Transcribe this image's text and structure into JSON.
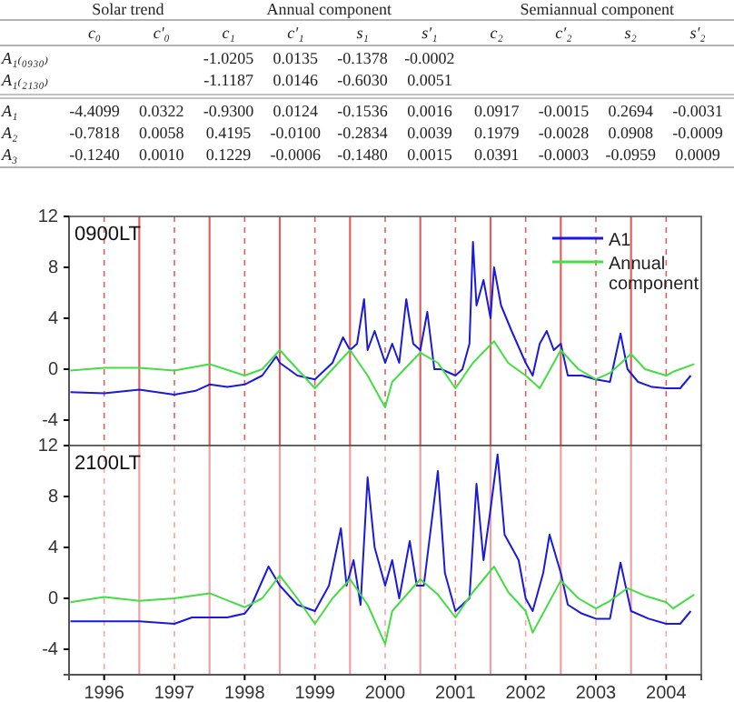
{
  "chart_data": [
    {
      "type": "other",
      "categories": [
        "c₀",
        "c′₀",
        "c₁",
        "c′₁",
        "s₁",
        "s′₁",
        "c₂",
        "c′₂",
        "s₂",
        "s′₂"
      ],
      "y_categories": [
        "A₁₍₀₉₃₀₎",
        "A₁₍₂₁₃₀₎",
        "A₁",
        "A₂",
        "A₃"
      ],
      "cell_labels": [
        [
          null,
          null,
          "-1.0205",
          "0.0135",
          "-0.1378",
          "-0.0002",
          null,
          null,
          null,
          null
        ],
        [
          null,
          null,
          "-1.1187",
          "0.0146",
          "-0.6030",
          "0.0051",
          null,
          null,
          null,
          null
        ],
        [
          "-4.4099",
          "0.0322",
          "-0.9300",
          "0.0124",
          "-0.1536",
          "0.0016",
          "0.0917",
          "-0.0015",
          "0.2694",
          "-0.0031"
        ],
        [
          "-0.7818",
          "0.0058",
          "0.4195",
          "-0.0100",
          "-0.2834",
          "0.0039",
          "0.1979",
          "-0.0028",
          "0.0908",
          "-0.0009"
        ],
        [
          "-0.1240",
          "0.0010",
          "0.1229",
          "-0.0006",
          "-0.1480",
          "0.0015",
          "0.0391",
          "-0.0003",
          "-0.0959",
          "0.0009"
        ]
      ],
      "annotations": [
        "Solar trend",
        "Annual component",
        "Semiannual component"
      ]
    },
    {
      "type": "line",
      "title": "0900LT",
      "xlim": [
        1995.5,
        2004.5
      ],
      "xticks": [
        1996,
        1997,
        1998,
        1999,
        2000,
        2001,
        2002,
        2003,
        2004
      ],
      "ylim": [
        -6,
        12
      ],
      "yticks": [
        -4,
        0,
        4,
        8,
        12
      ],
      "tick_labels": "y",
      "legend": "top right",
      "grid": false,
      "series": [
        {
          "name": "A1",
          "color": "#1a1adc",
          "x": [
            1995.52,
            1996,
            1996.5,
            1997,
            1997.3,
            1997.5,
            1997.75,
            1998,
            1998.25,
            1998.45,
            1998.5,
            1998.75,
            1999,
            1999.25,
            1999.4,
            1999.5,
            1999.6,
            1999.7,
            1999.75,
            1999.85,
            2000,
            2000.1,
            2000.2,
            2000.3,
            2000.4,
            2000.5,
            2000.6,
            2000.7,
            2000.8,
            2001,
            2001.1,
            2001.2,
            2001.25,
            2001.3,
            2001.4,
            2001.5,
            2001.55,
            2001.65,
            2001.8,
            2002,
            2002.1,
            2002.2,
            2002.3,
            2002.4,
            2002.5,
            2002.6,
            2002.8,
            2003,
            2003.2,
            2003.35,
            2003.45,
            2003.6,
            2003.8,
            2004,
            2004.2,
            2004.35
          ],
          "values": [
            -1.8,
            -1.9,
            -1.6,
            -2,
            -1.7,
            -1.2,
            -1.4,
            -1.2,
            -0.5,
            1,
            0.5,
            -0.5,
            -0.8,
            0.5,
            2.5,
            1.5,
            2,
            5.5,
            1.5,
            3,
            0.5,
            2,
            0.5,
            5.5,
            2,
            1.5,
            4.5,
            0,
            0,
            -0.5,
            0,
            2,
            10,
            5,
            7,
            4,
            8,
            5,
            3,
            0.5,
            -0.5,
            2,
            3,
            1.5,
            2,
            -0.5,
            -0.5,
            -0.8,
            -1,
            2.8,
            0,
            -1,
            -1.4,
            -1.5,
            -1.5,
            -0.5
          ]
        },
        {
          "name": "Annual component",
          "color": "#44dd44",
          "x": [
            1995.52,
            1996,
            1996.5,
            1997,
            1997.5,
            1998,
            1998.25,
            1998.5,
            1998.75,
            1999,
            1999.25,
            1999.5,
            1999.75,
            2000,
            2000.1,
            2000.5,
            2000.75,
            2001,
            2001.25,
            2001.55,
            2001.75,
            2002,
            2002.2,
            2002.5,
            2002.75,
            2003,
            2003.2,
            2003.5,
            2003.7,
            2004,
            2004.1,
            2004.4
          ],
          "values": [
            -0.1,
            0.1,
            0.1,
            -0.1,
            0.4,
            -0.5,
            0,
            1.5,
            0,
            -1.5,
            0,
            1.5,
            -0.5,
            -3,
            -1,
            1.3,
            0.5,
            -1.5,
            0.5,
            2.2,
            0.5,
            -0.5,
            -1.5,
            1.5,
            0,
            -0.8,
            -0.3,
            1.2,
            0,
            -0.5,
            -0.2,
            0.4
          ]
        }
      ],
      "ref_lines": [
        {
          "axis": "x",
          "value": 1996,
          "line_style": "dashed",
          "color": "#e06060"
        },
        {
          "axis": "x",
          "value": 1997,
          "line_style": "dashed",
          "color": "#e06060"
        },
        {
          "axis": "x",
          "value": 1998,
          "line_style": "dashed",
          "color": "#e06060"
        },
        {
          "axis": "x",
          "value": 1999,
          "line_style": "dashed",
          "color": "#e06060"
        },
        {
          "axis": "x",
          "value": 2000,
          "line_style": "dashed",
          "color": "#e06060"
        },
        {
          "axis": "x",
          "value": 2001,
          "line_style": "dashed",
          "color": "#e06060"
        },
        {
          "axis": "x",
          "value": 2002,
          "line_style": "dashed",
          "color": "#e06060"
        },
        {
          "axis": "x",
          "value": 2003,
          "line_style": "dashed",
          "color": "#e06060"
        },
        {
          "axis": "x",
          "value": 2004,
          "line_style": "dashed",
          "color": "#e06060"
        },
        {
          "axis": "x",
          "value": 1996.5,
          "line_style": "solid",
          "color": "#e06060"
        },
        {
          "axis": "x",
          "value": 1997.5,
          "line_style": "solid",
          "color": "#e06060"
        },
        {
          "axis": "x",
          "value": 1998.5,
          "line_style": "solid",
          "color": "#e06060"
        },
        {
          "axis": "x",
          "value": 1999.5,
          "line_style": "solid",
          "color": "#e06060"
        },
        {
          "axis": "x",
          "value": 2000.5,
          "line_style": "solid",
          "color": "#e06060"
        },
        {
          "axis": "x",
          "value": 2001.5,
          "line_style": "solid",
          "color": "#e06060"
        },
        {
          "axis": "x",
          "value": 2002.5,
          "line_style": "solid",
          "color": "#e06060"
        },
        {
          "axis": "x",
          "value": 2003.5,
          "line_style": "solid",
          "color": "#e06060"
        }
      ]
    },
    {
      "type": "line",
      "title": "2100LT",
      "xlim": [
        1995.5,
        2004.5
      ],
      "xticks": [
        1996,
        1997,
        1998,
        1999,
        2000,
        2001,
        2002,
        2003,
        2004
      ],
      "ylim": [
        -6,
        12
      ],
      "yticks": [
        -4,
        0,
        4,
        8,
        12
      ],
      "grid": false,
      "series": [
        {
          "color": "#1a1adc",
          "x": [
            1995.52,
            1996,
            1996.5,
            1997,
            1997.25,
            1997.5,
            1997.75,
            1998,
            1998.1,
            1998.34,
            1998.5,
            1998.75,
            1999,
            1999.2,
            1999.37,
            1999.45,
            1999.55,
            1999.65,
            1999.75,
            1999.85,
            2000,
            2000.1,
            2000.2,
            2000.35,
            2000.45,
            2000.55,
            2000.75,
            2000.85,
            2001,
            2001.2,
            2001.3,
            2001.4,
            2001.5,
            2001.6,
            2001.7,
            2001.9,
            2002,
            2002.1,
            2002.25,
            2002.34,
            2002.5,
            2002.6,
            2002.8,
            2003,
            2003.2,
            2003.35,
            2003.5,
            2003.75,
            2004,
            2004.2,
            2004.35
          ],
          "values": [
            -1.8,
            -1.8,
            -1.8,
            -2,
            -1.5,
            -1.5,
            -1.5,
            -1.2,
            -0.5,
            2.5,
            1,
            -0.5,
            -1,
            1,
            5.5,
            1,
            3,
            -0.5,
            9.5,
            4,
            1,
            3,
            0,
            4.5,
            1,
            1,
            10,
            2,
            -1,
            0,
            9,
            3,
            7,
            11.3,
            5,
            3,
            0,
            -1,
            2,
            5,
            2,
            -0.5,
            -1.2,
            -1.6,
            -1.6,
            2.8,
            -1,
            -1.6,
            -2,
            -2,
            -1
          ]
        },
        {
          "color": "#44dd44",
          "x": [
            1995.52,
            1996,
            1996.5,
            1997,
            1997.5,
            1998,
            1998.25,
            1998.5,
            1998.75,
            1999,
            1999.25,
            1999.5,
            1999.75,
            2000,
            2000.1,
            2000.5,
            2000.75,
            2001,
            2001.25,
            2001.55,
            2001.75,
            2002,
            2002.1,
            2002.5,
            2002.75,
            2003,
            2003.2,
            2003.45,
            2003.7,
            2004,
            2004.1,
            2004.4
          ],
          "values": [
            -0.3,
            0.1,
            -0.2,
            0,
            0.4,
            -0.7,
            0,
            1.8,
            0,
            -2,
            0,
            1.5,
            -0.5,
            -3.6,
            -1,
            1.5,
            0.3,
            -1.5,
            0.5,
            2.5,
            0.5,
            -1,
            -2.7,
            1.4,
            0,
            -0.8,
            -0.2,
            0.8,
            0.2,
            -0.3,
            -0.8,
            0.3
          ]
        }
      ],
      "ref_lines": [
        {
          "axis": "x",
          "value": 1996,
          "line_style": "dashed",
          "color": "#f0a8a8"
        },
        {
          "axis": "x",
          "value": 1997,
          "line_style": "dashed",
          "color": "#f0a8a8"
        },
        {
          "axis": "x",
          "value": 1998,
          "line_style": "dashed",
          "color": "#f0a8a8"
        },
        {
          "axis": "x",
          "value": 1999,
          "line_style": "dashed",
          "color": "#f0a8a8"
        },
        {
          "axis": "x",
          "value": 2000,
          "line_style": "dashed",
          "color": "#f0a8a8"
        },
        {
          "axis": "x",
          "value": 2001,
          "line_style": "dashed",
          "color": "#f0a8a8"
        },
        {
          "axis": "x",
          "value": 2002,
          "line_style": "dashed",
          "color": "#f0a8a8"
        },
        {
          "axis": "x",
          "value": 2003,
          "line_style": "dashed",
          "color": "#f0a8a8"
        },
        {
          "axis": "x",
          "value": 2004,
          "line_style": "dashed",
          "color": "#f0a8a8"
        },
        {
          "axis": "x",
          "value": 1996.5,
          "line_style": "solid",
          "color": "#f0a0a0"
        },
        {
          "axis": "x",
          "value": 1997.5,
          "line_style": "solid",
          "color": "#f0a0a0"
        },
        {
          "axis": "x",
          "value": 1998.5,
          "line_style": "solid",
          "color": "#f0a0a0"
        },
        {
          "axis": "x",
          "value": 1999.5,
          "line_style": "solid",
          "color": "#f0a0a0"
        },
        {
          "axis": "x",
          "value": 2000.5,
          "line_style": "solid",
          "color": "#f0a0a0"
        },
        {
          "axis": "x",
          "value": 2001.5,
          "line_style": "solid",
          "color": "#f0a0a0"
        },
        {
          "axis": "x",
          "value": 2002.5,
          "line_style": "solid",
          "color": "#f0a0a0"
        },
        {
          "axis": "x",
          "value": 2003.5,
          "line_style": "solid",
          "color": "#f0a0a0"
        }
      ]
    }
  ]
}
